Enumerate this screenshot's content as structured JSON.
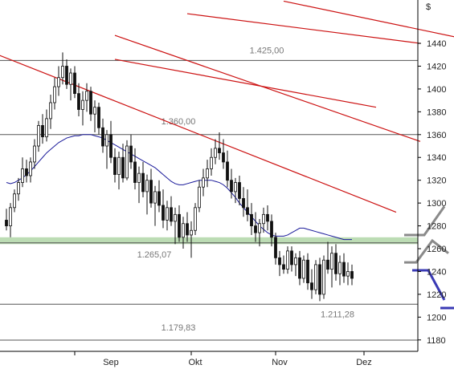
{
  "chart_data": {
    "type": "candlestick",
    "currency_symbol": "$",
    "y_axis_side": "right",
    "ylim": [
      1170,
      1478
    ],
    "y_ticks": [
      1180,
      1200,
      1220,
      1240,
      1260,
      1280,
      1300,
      1320,
      1340,
      1360,
      1380,
      1400,
      1420,
      1440
    ],
    "y_tick_labels": [
      "1180",
      "1200",
      "1220",
      "1240",
      "1260",
      "1280",
      "1300",
      "1320",
      "1340",
      "1360",
      "1380",
      "1400",
      "1420",
      "1440"
    ],
    "x_ticks": [
      "Sep",
      "Okt",
      "Nov",
      "Dez"
    ],
    "levels": [
      {
        "value": 1425,
        "label": "1.425,00"
      },
      {
        "value": 1360,
        "label": "1.360,00"
      },
      {
        "value": 1265.07,
        "label": "1.265,07"
      },
      {
        "value": 1211.28,
        "label": "1.211,28"
      },
      {
        "value": 1179.83,
        "label": "1.179,83"
      }
    ],
    "support_zone": {
      "low": 1264,
      "high": 1270,
      "color": "#bcdcb4"
    },
    "candles": [
      [
        1285,
        1295,
        1276,
        1280
      ],
      [
        1280,
        1300,
        1270,
        1296
      ],
      [
        1296,
        1312,
        1292,
        1308
      ],
      [
        1308,
        1322,
        1302,
        1318
      ],
      [
        1318,
        1340,
        1314,
        1330
      ],
      [
        1330,
        1338,
        1318,
        1324
      ],
      [
        1324,
        1340,
        1318,
        1336
      ],
      [
        1336,
        1356,
        1330,
        1350
      ],
      [
        1350,
        1372,
        1345,
        1368
      ],
      [
        1368,
        1378,
        1352,
        1358
      ],
      [
        1358,
        1382,
        1354,
        1374
      ],
      [
        1374,
        1395,
        1365,
        1388
      ],
      [
        1388,
        1410,
        1382,
        1402
      ],
      [
        1402,
        1420,
        1394,
        1410
      ],
      [
        1410,
        1432,
        1404,
        1420
      ],
      [
        1420,
        1426,
        1400,
        1404
      ],
      [
        1404,
        1418,
        1390,
        1414
      ],
      [
        1414,
        1420,
        1392,
        1396
      ],
      [
        1396,
        1405,
        1376,
        1382
      ],
      [
        1382,
        1398,
        1368,
        1390
      ],
      [
        1390,
        1405,
        1380,
        1398
      ],
      [
        1398,
        1402,
        1372,
        1378
      ],
      [
        1378,
        1390,
        1362,
        1384
      ],
      [
        1384,
        1388,
        1360,
        1366
      ],
      [
        1366,
        1374,
        1344,
        1350
      ],
      [
        1350,
        1364,
        1330,
        1360
      ],
      [
        1360,
        1372,
        1335,
        1340
      ],
      [
        1340,
        1348,
        1318,
        1325
      ],
      [
        1325,
        1345,
        1312,
        1340
      ],
      [
        1340,
        1352,
        1318,
        1322
      ],
      [
        1322,
        1355,
        1320,
        1350
      ],
      [
        1350,
        1360,
        1330,
        1336
      ],
      [
        1336,
        1348,
        1312,
        1318
      ],
      [
        1318,
        1332,
        1300,
        1326
      ],
      [
        1326,
        1336,
        1305,
        1310
      ],
      [
        1310,
        1325,
        1290,
        1320
      ],
      [
        1320,
        1330,
        1296,
        1300
      ],
      [
        1300,
        1315,
        1280,
        1310
      ],
      [
        1310,
        1320,
        1292,
        1298
      ],
      [
        1298,
        1312,
        1278,
        1285
      ],
      [
        1285,
        1302,
        1276,
        1296
      ],
      [
        1296,
        1306,
        1280,
        1284
      ],
      [
        1284,
        1296,
        1264,
        1290
      ],
      [
        1290,
        1298,
        1266,
        1270
      ],
      [
        1270,
        1288,
        1260,
        1282
      ],
      [
        1282,
        1292,
        1266,
        1272
      ],
      [
        1272,
        1284,
        1252,
        1276
      ],
      [
        1276,
        1300,
        1272,
        1296
      ],
      [
        1296,
        1320,
        1292,
        1314
      ],
      [
        1314,
        1330,
        1306,
        1322
      ],
      [
        1322,
        1338,
        1314,
        1330
      ],
      [
        1330,
        1348,
        1324,
        1340
      ],
      [
        1340,
        1356,
        1334,
        1348
      ],
      [
        1348,
        1362,
        1338,
        1344
      ],
      [
        1344,
        1356,
        1330,
        1336
      ],
      [
        1336,
        1346,
        1314,
        1320
      ],
      [
        1320,
        1330,
        1304,
        1310
      ],
      [
        1310,
        1322,
        1300,
        1318
      ],
      [
        1318,
        1324,
        1298,
        1304
      ],
      [
        1304,
        1314,
        1288,
        1296
      ],
      [
        1296,
        1312,
        1284,
        1290
      ],
      [
        1290,
        1300,
        1272,
        1280
      ],
      [
        1280,
        1292,
        1266,
        1274
      ],
      [
        1274,
        1286,
        1262,
        1282
      ],
      [
        1282,
        1296,
        1274,
        1290
      ],
      [
        1290,
        1298,
        1276,
        1284
      ],
      [
        1284,
        1290,
        1262,
        1270
      ],
      [
        1270,
        1274,
        1246,
        1252
      ],
      [
        1252,
        1258,
        1236,
        1246
      ],
      [
        1246,
        1254,
        1238,
        1242
      ],
      [
        1242,
        1262,
        1238,
        1258
      ],
      [
        1258,
        1262,
        1240,
        1246
      ],
      [
        1246,
        1256,
        1236,
        1252
      ],
      [
        1252,
        1258,
        1228,
        1234
      ],
      [
        1234,
        1254,
        1230,
        1250
      ],
      [
        1250,
        1256,
        1224,
        1230
      ],
      [
        1230,
        1242,
        1216,
        1224
      ],
      [
        1224,
        1250,
        1220,
        1246
      ],
      [
        1246,
        1252,
        1214,
        1220
      ],
      [
        1220,
        1254,
        1216,
        1250
      ],
      [
        1250,
        1266,
        1238,
        1242
      ],
      [
        1242,
        1262,
        1226,
        1256
      ],
      [
        1256,
        1264,
        1232,
        1238
      ],
      [
        1238,
        1254,
        1228,
        1248
      ],
      [
        1248,
        1256,
        1230,
        1236
      ],
      [
        1236,
        1248,
        1228,
        1240
      ],
      [
        1240,
        1246,
        1228,
        1234
      ]
    ],
    "moving_average": [
      1318,
      1317,
      1318,
      1320,
      1322,
      1325,
      1328,
      1332,
      1336,
      1340,
      1344,
      1347,
      1350,
      1353,
      1355,
      1357,
      1358,
      1359,
      1359,
      1360,
      1360,
      1360,
      1359,
      1358,
      1357,
      1355,
      1353,
      1351,
      1349,
      1347,
      1345,
      1343,
      1341,
      1339,
      1337,
      1335,
      1333,
      1331,
      1328,
      1325,
      1322,
      1319,
      1317,
      1316,
      1316,
      1317,
      1318,
      1319,
      1320,
      1320,
      1320,
      1320,
      1319,
      1318,
      1316,
      1313,
      1309,
      1305,
      1300,
      1296,
      1292,
      1288,
      1284,
      1280,
      1277,
      1274,
      1272,
      1271,
      1271,
      1271,
      1272,
      1274,
      1276,
      1278,
      1278,
      1277,
      1276,
      1275,
      1274,
      1273,
      1272,
      1271,
      1270,
      1269,
      1268,
      1268,
      1268
    ],
    "trendlines": [
      {
        "color": "#cc1111",
        "from": [
          -10,
          1441
        ],
        "to": [
          97,
          1292
        ]
      },
      {
        "color": "#cc1111",
        "from": [
          27,
          1426
        ],
        "to": [
          92,
          1384
        ]
      },
      {
        "color": "#cc1111",
        "from": [
          27,
          1447
        ],
        "to": [
          103,
          1354
        ]
      },
      {
        "color": "#cc1111",
        "from": [
          45,
          1466
        ],
        "to": [
          103,
          1440
        ]
      },
      {
        "color": "#cc1111",
        "from": [
          69,
          1477
        ],
        "to": [
          118,
          1441
        ]
      }
    ],
    "scenario_paths": [
      {
        "color": "#8a8a8a",
        "points": [
          [
            99,
            1272
          ],
          [
            104,
            1272
          ],
          [
            109,
            1297
          ]
        ]
      },
      {
        "color": "#8a8a8a",
        "points": [
          [
            99,
            1248
          ],
          [
            102,
            1248
          ],
          [
            106,
            1267
          ],
          [
            110,
            1256
          ]
        ]
      },
      {
        "color": "#3a3ab4",
        "points": [
          [
            101,
            1241
          ],
          [
            105,
            1241
          ],
          [
            109,
            1215
          ]
        ]
      },
      {
        "color": "#3a3ab4",
        "points": [
          [
            108,
            1208
          ],
          [
            113,
            1208
          ],
          [
            117,
            1180
          ],
          [
            119,
            1183
          ]
        ]
      }
    ]
  }
}
